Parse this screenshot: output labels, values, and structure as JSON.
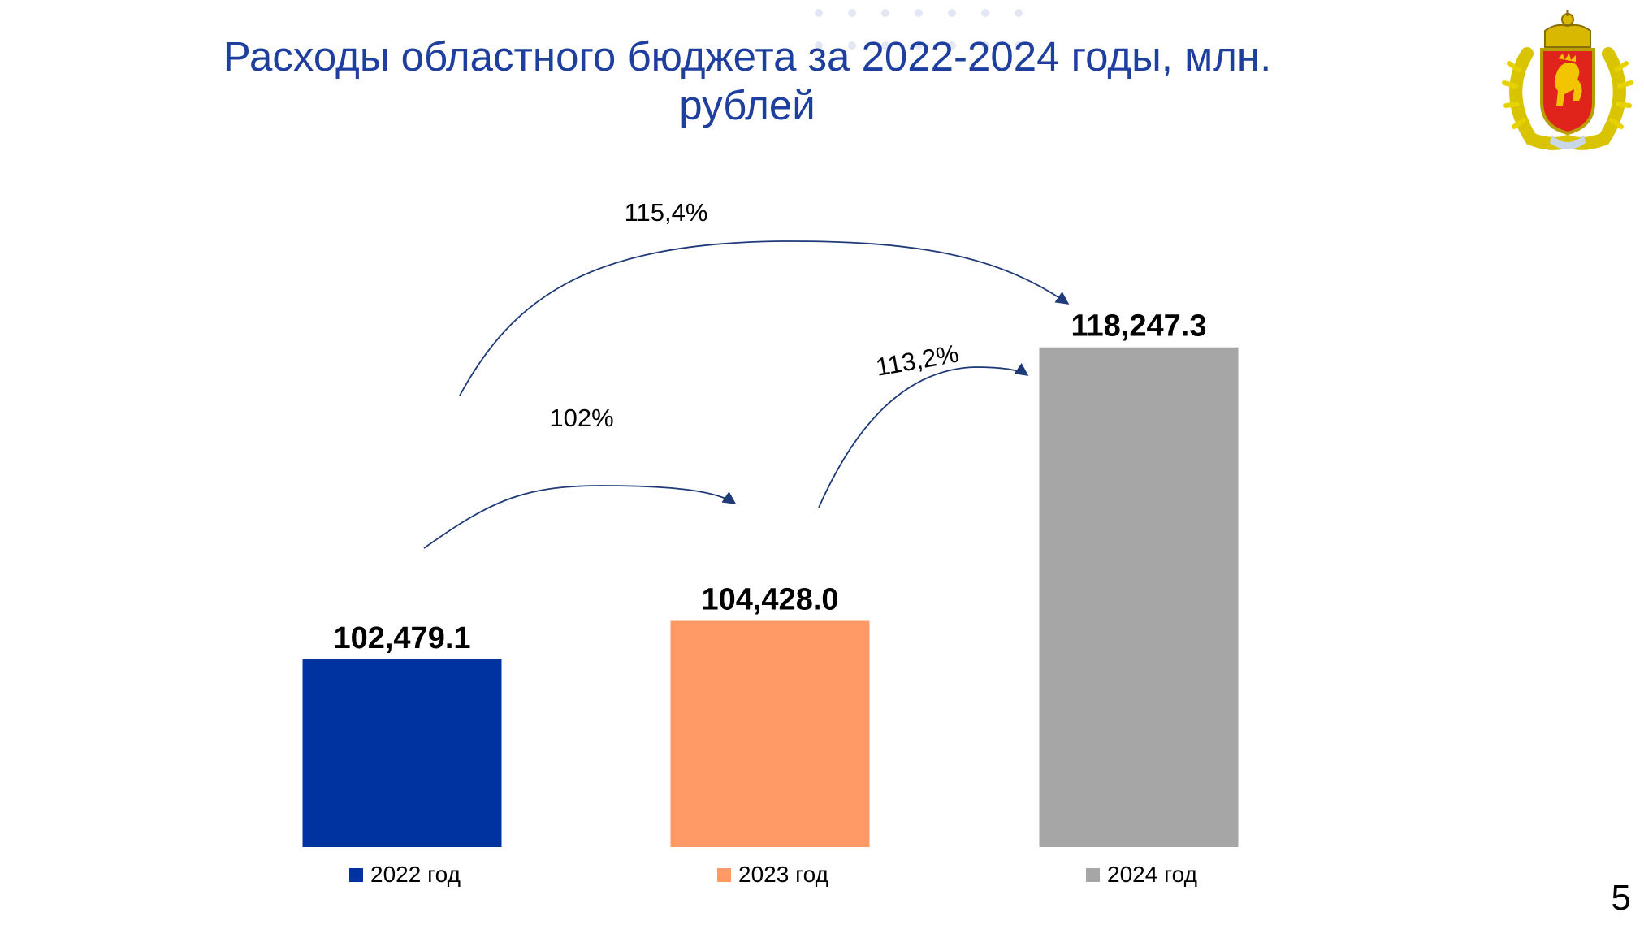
{
  "slide": {
    "title": "Расходы областного бюджета за 2022-2024 годы, млн. рублей",
    "page_number": "5"
  },
  "emblem": {
    "icon": "coat-of-arms-icon"
  },
  "chart_data": {
    "type": "bar",
    "title": "Расходы областного бюджета за 2022-2024 годы, млн. рублей",
    "xlabel": "",
    "ylabel": "",
    "categories": [
      "2022 год",
      "2023 год",
      "2024 год"
    ],
    "values": [
      102479.1,
      104428.0,
      118247.3
    ],
    "value_labels": [
      "102,479.1",
      "104,428.0",
      "118,247.3"
    ],
    "colors": [
      "#0033a0",
      "#ff9966",
      "#a6a6a6"
    ],
    "ylim": [
      93000,
      120000
    ],
    "grid": false,
    "legend": {
      "position": "bottom",
      "entries": [
        "2022 год",
        "2023 год",
        "2024 год"
      ]
    },
    "annotations": [
      {
        "text": "102%",
        "from": 0,
        "to": 1
      },
      {
        "text": "113,2%",
        "from": 1,
        "to": 2
      },
      {
        "text": "115,4%",
        "from": 0,
        "to": 2
      }
    ]
  }
}
